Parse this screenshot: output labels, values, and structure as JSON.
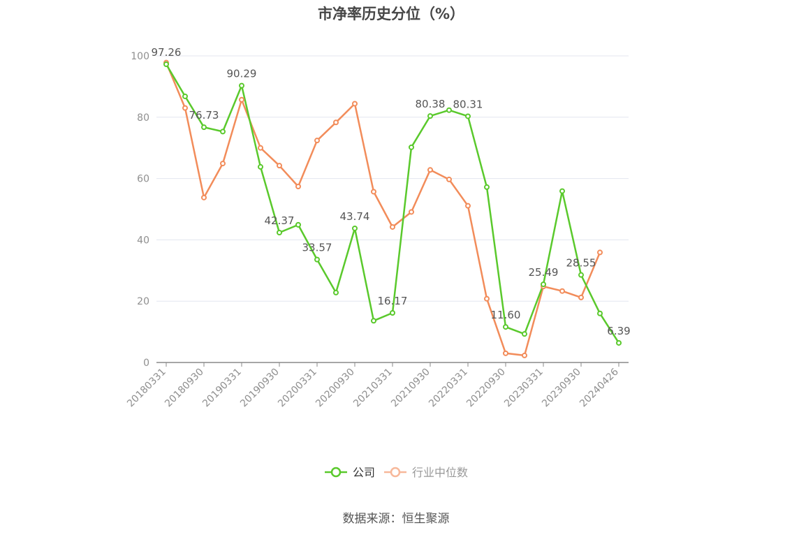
{
  "chart_data": {
    "type": "line",
    "title": "市净率历史分位（%）",
    "source": "数据来源：恒生聚源",
    "ylim": [
      0,
      100
    ],
    "yticks": [
      0,
      20,
      40,
      60,
      80,
      100
    ],
    "x_ticklabels": [
      "20180331",
      "20180930",
      "20190331",
      "20190930",
      "20200331",
      "20200930",
      "20210331",
      "20210930",
      "20220331",
      "20220930",
      "20230331",
      "20230930",
      "20240426"
    ],
    "grid": true,
    "legend_position": "bottom",
    "series": [
      {
        "name": "公司",
        "color": "#5ac92c",
        "values": [
          97.26,
          86.8,
          76.73,
          75.3,
          90.29,
          63.8,
          42.37,
          44.9,
          33.57,
          22.8,
          43.74,
          13.6,
          16.17,
          70.2,
          80.38,
          82.3,
          80.31,
          57.2,
          11.6,
          9.3,
          25.49,
          55.9,
          28.55,
          16.0,
          6.39
        ],
        "labeled_points": [
          {
            "index": 0,
            "text": "97.26"
          },
          {
            "index": 2,
            "text": "76.73"
          },
          {
            "index": 4,
            "text": "90.29"
          },
          {
            "index": 6,
            "text": "42.37"
          },
          {
            "index": 8,
            "text": "33.57"
          },
          {
            "index": 10,
            "text": "43.74"
          },
          {
            "index": 12,
            "text": "16.17"
          },
          {
            "index": 14,
            "text": "80.38"
          },
          {
            "index": 16,
            "text": "80.31"
          },
          {
            "index": 18,
            "text": "11.60"
          },
          {
            "index": 20,
            "text": "25.49"
          },
          {
            "index": 22,
            "text": "28.55"
          },
          {
            "index": 24,
            "text": "6.39"
          }
        ]
      },
      {
        "name": "行业中位数",
        "color": "#f28c5a",
        "legend_color": "#f7b89a",
        "values": [
          97.8,
          83.0,
          53.8,
          64.9,
          85.7,
          70.0,
          64.2,
          57.4,
          72.4,
          78.3,
          84.4,
          55.7,
          44.2,
          49.1,
          62.8,
          59.7,
          51.1,
          20.8,
          3.0,
          2.3,
          24.8,
          23.3,
          21.2,
          35.9
        ]
      }
    ]
  }
}
